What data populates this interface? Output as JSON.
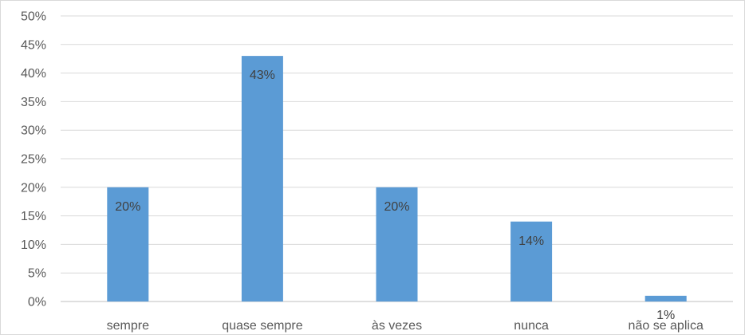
{
  "chart_data": {
    "type": "bar",
    "categories": [
      "sempre",
      "quase sempre",
      "às vezes",
      "nunca",
      "não se aplica"
    ],
    "values": [
      20,
      43,
      20,
      14,
      1
    ],
    "data_labels": [
      "20%",
      "43%",
      "20%",
      "14%",
      "1%"
    ],
    "y_ticks": [
      0,
      5,
      10,
      15,
      20,
      25,
      30,
      35,
      40,
      45,
      50
    ],
    "y_tick_labels": [
      "0%",
      "5%",
      "10%",
      "15%",
      "20%",
      "25%",
      "30%",
      "35%",
      "40%",
      "45%",
      "50%"
    ],
    "ylim": [
      0,
      50
    ],
    "grid": true,
    "legend": "none",
    "colors": {
      "bar": "#5b9bd5",
      "grid": "#d9d9d9",
      "axis": "#bfbfbf",
      "text": "#595959"
    }
  }
}
